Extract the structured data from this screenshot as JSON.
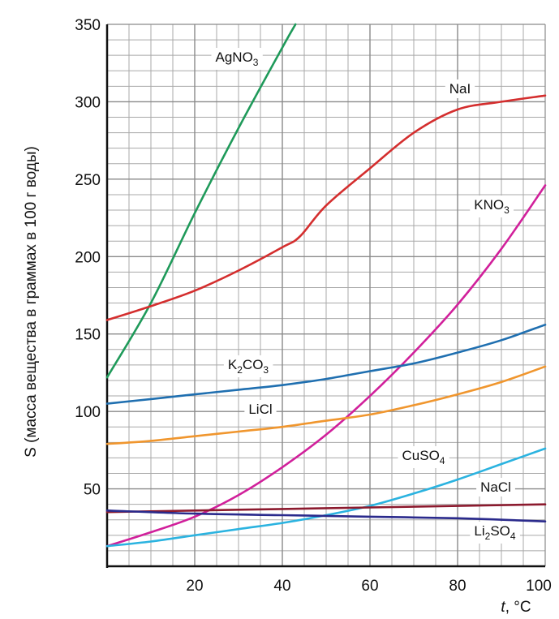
{
  "chart_data": {
    "type": "line",
    "title": "",
    "ylabel": "S (масса вещества в граммах в 100 г воды)",
    "xlabel": {
      "var": "t",
      "unit": ", °C"
    },
    "xlim": [
      0,
      100
    ],
    "ylim": [
      0,
      350
    ],
    "xticks": [
      20,
      40,
      60,
      80,
      100
    ],
    "yticks": [
      50,
      100,
      150,
      200,
      250,
      300,
      350
    ],
    "grid": true,
    "series": [
      {
        "name": "AgNO3",
        "label_main": "AgNO",
        "label_sub": "3",
        "sub_pos": "after",
        "color": "#1f9a5a",
        "x": [
          0,
          10,
          20,
          30,
          40,
          43
        ],
        "y": [
          122,
          170,
          228,
          283,
          335,
          350
        ]
      },
      {
        "name": "NaI",
        "label_main": "NaI",
        "label_sub": "",
        "sub_pos": "none",
        "color": "#d42e2e",
        "x": [
          0,
          10,
          20,
          30,
          40,
          44,
          50,
          60,
          70,
          80,
          90,
          100
        ],
        "y": [
          159,
          168,
          178,
          191,
          206,
          213,
          233,
          257,
          280,
          295,
          300,
          304
        ]
      },
      {
        "name": "KNO3",
        "label_main": "KNO",
        "label_sub": "3",
        "sub_pos": "after",
        "color": "#d1209b",
        "x": [
          0,
          10,
          20,
          30,
          40,
          50,
          60,
          70,
          80,
          90,
          100
        ],
        "y": [
          13,
          22,
          32,
          46,
          64,
          85,
          110,
          138,
          169,
          205,
          246
        ]
      },
      {
        "name": "K2CO3",
        "label_main": "K",
        "label_sub": "2",
        "label_tail": "CO",
        "label_sub2": "3",
        "sub_pos": "k2co3",
        "color": "#1f6fb0",
        "x": [
          0,
          10,
          20,
          30,
          40,
          50,
          60,
          70,
          80,
          90,
          100
        ],
        "y": [
          105,
          108,
          111,
          114,
          117,
          121,
          126,
          131,
          138,
          146,
          156
        ]
      },
      {
        "name": "LiCl",
        "label_main": "LiCl",
        "label_sub": "",
        "sub_pos": "none",
        "color": "#f0962e",
        "x": [
          0,
          10,
          20,
          30,
          40,
          50,
          60,
          70,
          80,
          90,
          100
        ],
        "y": [
          79,
          81,
          84,
          87,
          90,
          94,
          98,
          104,
          111,
          119,
          129
        ]
      },
      {
        "name": "CuSO4",
        "label_main": "CuSO",
        "label_sub": "4",
        "sub_pos": "after",
        "color": "#2bb3e0",
        "x": [
          0,
          10,
          20,
          30,
          40,
          50,
          60,
          70,
          80,
          90,
          100
        ],
        "y": [
          13,
          16,
          20,
          24,
          28,
          33,
          39,
          47,
          56,
          66,
          76
        ]
      },
      {
        "name": "NaCl",
        "label_main": "NaCl",
        "label_sub": "",
        "sub_pos": "none",
        "color": "#8c1a2e",
        "x": [
          0,
          20,
          40,
          60,
          80,
          100
        ],
        "y": [
          35,
          36,
          37,
          38,
          39,
          40
        ]
      },
      {
        "name": "Li2SO4",
        "label_main": "Li",
        "label_sub": "2",
        "label_tail": "SO",
        "label_sub2": "4",
        "sub_pos": "li2so4",
        "color": "#2a2a8c",
        "x": [
          0,
          20,
          40,
          60,
          80,
          100
        ],
        "y": [
          36,
          34,
          33,
          32,
          31,
          29
        ]
      }
    ]
  }
}
